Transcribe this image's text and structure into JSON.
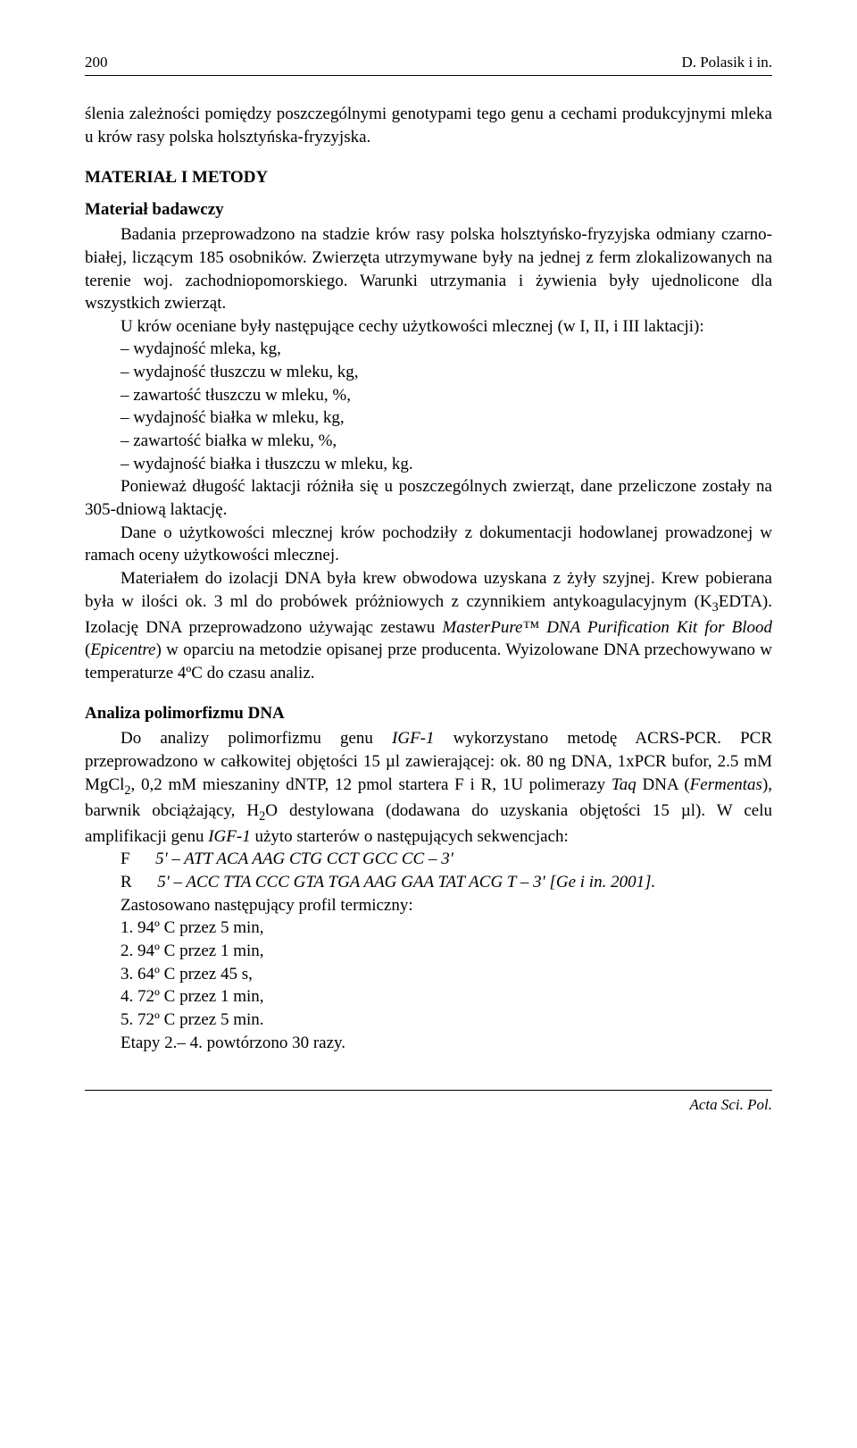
{
  "header": {
    "page_number": "200",
    "running_head": "D. Polasik i in."
  },
  "intro_fragment": "ślenia zależności pomiędzy poszczególnymi genotypami tego genu a cechami produkcyjnymi mleka u krów rasy polska holsztyńska-fryzyjska.",
  "section1": {
    "title": "MATERIAŁ I METODY",
    "sub1_title": "Materiał badawczy",
    "para1": "Badania przeprowadzono na stadzie krów rasy polska holsztyńsko-fryzyjska odmiany czarno-białej, liczącym 185 osobników. Zwierzęta utrzymywane były na jednej z ferm zlokalizowanych na terenie woj. zachodniopomorskiego. Warunki utrzymania i żywienia były ujednolicone dla wszystkich zwierząt.",
    "para2_lead": "U krów oceniane były następujące cechy użytkowości mlecznej (w I, II, i III laktacji):",
    "bullets": [
      "– wydajność mleka, kg,",
      "– wydajność tłuszczu w mleku, kg,",
      "– zawartość tłuszczu w mleku, %,",
      "– wydajność białka w mleku, kg,",
      "– zawartość białka w mleku, %,",
      "– wydajność białka i tłuszczu w mleku, kg."
    ],
    "para3": "Ponieważ długość laktacji różniła się u poszczególnych zwierząt, dane przeliczone zostały na 305-dniową laktację.",
    "para4": "Dane o użytkowości mlecznej krów pochodziły z dokumentacji hodowlanej prowadzonej w ramach oceny użytkowości mlecznej.",
    "para5_part1": "Materiałem do izolacji DNA była krew obwodowa uzyskana z żyły szyjnej. Krew pobierana była w ilości ok. 3 ml do probówek próżniowych z czynnikiem antykoagulacyjnym (K",
    "para5_sub": "3",
    "para5_part2": "EDTA). Izolację DNA przeprowadzono używając zestawu ",
    "para5_italic1": "MasterPure™ DNA Purification Kit for Blood",
    "para5_part3": " (",
    "para5_italic2": "Epicentre",
    "para5_part4": ") w oparciu na metodzie opisanej prze producenta. Wyizolowane DNA przechowywano w temperaturze 4ºC do czasu analiz.",
    "sub2_title": "Analiza polimorfizmu DNA",
    "para6_part1": "Do analizy polimorfizmu genu ",
    "para6_italic1": "IGF-1",
    "para6_part2": " wykorzystano metodę ACRS-PCR. PCR przeprowadzono w całkowitej objętości 15 µl zawierającej: ok. 80 ng DNA, 1xPCR bufor, 2.5 mM MgCl",
    "para6_sub1": "2",
    "para6_part3": ", 0,2 mM mieszaniny dNTP, 12 pmol startera F i R, 1U polimerazy ",
    "para6_italic2": "Taq",
    "para6_part4": " DNA (",
    "para6_italic3": "Fermentas",
    "para6_part5": "), barwnik obciążający, H",
    "para6_sub2": "2",
    "para6_part6": "O destylowana (dodawana do uzyskania objętości 15 µl). W celu amplifikacji genu ",
    "para6_italic4": "IGF-1",
    "para6_part7": " użyto starterów o następujących sekwencjach:",
    "primer_f_label": "F",
    "primer_f_seq": "5' – ATT ACA AAG CTG CCT GCC CC – 3'",
    "primer_r_label": "R",
    "primer_r_seq": "5' – ACC TTA CCC GTA TGA AAG GAA TAT ACG T – 3' [Ge i in. 2001].",
    "thermal_intro": "Zastosowano następujący profil termiczny:",
    "thermal": [
      "1. 94º C przez 5 min,",
      "2. 94º C przez 1 min,",
      "3. 64º C przez 45 s,",
      "4. 72º C przez 1 min,",
      "5. 72º C przez 5 min."
    ],
    "thermal_repeat": "Etapy 2.– 4. powtórzono 30 razy."
  },
  "footer": {
    "journal": "Acta Sci. Pol."
  }
}
